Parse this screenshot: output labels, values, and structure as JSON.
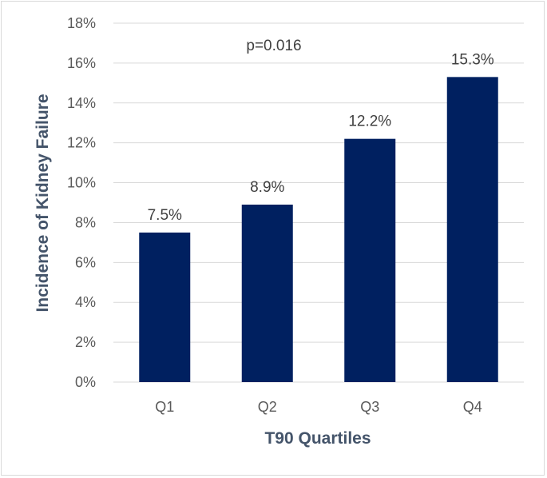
{
  "chart_data": {
    "type": "bar",
    "categories": [
      "Q1",
      "Q2",
      "Q3",
      "Q4"
    ],
    "values": [
      7.5,
      8.9,
      12.2,
      15.3
    ],
    "data_labels": [
      "7.5%",
      "8.9%",
      "12.2%",
      "15.3%"
    ],
    "title": "",
    "xlabel": "T90 Quartiles",
    "ylabel": "Incidence of Kidney Failure",
    "ylim": [
      0,
      18
    ],
    "yticks": [
      0,
      2,
      4,
      6,
      8,
      10,
      12,
      14,
      16,
      18
    ],
    "ytick_labels": [
      "0%",
      "2%",
      "4%",
      "6%",
      "8%",
      "10%",
      "12%",
      "14%",
      "16%",
      "18%"
    ],
    "annotation": "p=0.016",
    "grid": true,
    "legend": "none",
    "bar_color": "#002060",
    "grid_color": "#d9d9d9"
  }
}
